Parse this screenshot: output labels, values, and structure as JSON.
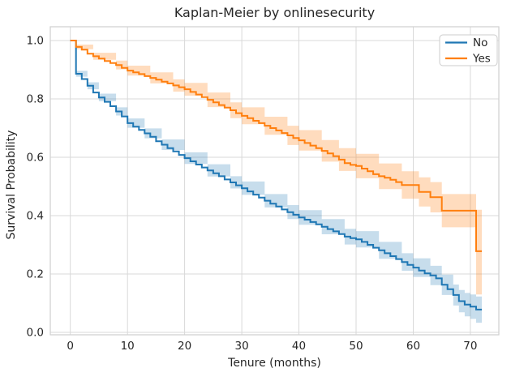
{
  "chart_data": {
    "type": "line",
    "variant": "kaplan-meier-step-with-confidence-bands",
    "title": "Kaplan-Meier by onlinesecurity",
    "xlabel": "Tenure (months)",
    "ylabel": "Survival Probability",
    "xticks": [
      0,
      10,
      20,
      30,
      40,
      50,
      60,
      70
    ],
    "yticks": [
      0,
      0.2,
      0.4,
      0.6,
      0.8,
      1
    ],
    "xlim": [
      -3.5,
      75
    ],
    "ylim": [
      0.0,
      1.0
    ],
    "grid": true,
    "colors": {
      "text": "#262626",
      "grid": "#d9d9d9",
      "spine": "#cfcfcf",
      "background": "#ffffff",
      "legend_border": "#cccccc"
    },
    "legend": {
      "position": "upper right",
      "entries": [
        {
          "label": "No",
          "color": "#1f77b4"
        },
        {
          "label": "Yes",
          "color": "#ff7f0e"
        }
      ]
    },
    "series": [
      {
        "name": "No",
        "color": "#1f77b4",
        "band_fill": "rgba(31,119,180,0.25)",
        "points": [
          [
            0,
            1
          ],
          [
            1,
            0.886
          ],
          [
            2,
            0.868
          ],
          [
            3,
            0.845
          ],
          [
            4,
            0.822
          ],
          [
            5,
            0.805
          ],
          [
            6,
            0.79
          ],
          [
            7,
            0.775
          ],
          [
            8,
            0.757
          ],
          [
            9,
            0.74
          ],
          [
            10,
            0.717
          ],
          [
            11,
            0.705
          ],
          [
            12,
            0.694
          ],
          [
            13,
            0.682
          ],
          [
            14,
            0.67
          ],
          [
            15,
            0.655
          ],
          [
            16,
            0.643
          ],
          [
            17,
            0.631
          ],
          [
            18,
            0.62
          ],
          [
            19,
            0.608
          ],
          [
            20,
            0.597
          ],
          [
            21,
            0.586
          ],
          [
            22,
            0.575
          ],
          [
            23,
            0.565
          ],
          [
            24,
            0.555
          ],
          [
            25,
            0.545
          ],
          [
            26,
            0.535
          ],
          [
            27,
            0.524
          ],
          [
            28,
            0.514
          ],
          [
            29,
            0.504
          ],
          [
            30,
            0.494
          ],
          [
            31,
            0.483
          ],
          [
            32,
            0.472
          ],
          [
            33,
            0.462
          ],
          [
            34,
            0.451
          ],
          [
            35,
            0.441
          ],
          [
            36,
            0.431
          ],
          [
            37,
            0.421
          ],
          [
            38,
            0.412
          ],
          [
            39,
            0.403
          ],
          [
            40,
            0.394
          ],
          [
            41,
            0.386
          ],
          [
            42,
            0.378
          ],
          [
            43,
            0.37
          ],
          [
            44,
            0.362
          ],
          [
            45,
            0.354
          ],
          [
            46,
            0.346
          ],
          [
            47,
            0.337
          ],
          [
            48,
            0.328
          ],
          [
            49,
            0.323
          ],
          [
            50,
            0.319
          ],
          [
            51,
            0.31
          ],
          [
            52,
            0.3
          ],
          [
            53,
            0.29
          ],
          [
            54,
            0.281
          ],
          [
            55,
            0.271
          ],
          [
            56,
            0.261
          ],
          [
            57,
            0.251
          ],
          [
            58,
            0.241
          ],
          [
            59,
            0.231
          ],
          [
            60,
            0.222
          ],
          [
            61,
            0.212
          ],
          [
            62,
            0.202
          ],
          [
            63,
            0.195
          ],
          [
            64,
            0.185
          ],
          [
            65,
            0.163
          ],
          [
            66,
            0.148
          ],
          [
            67,
            0.128
          ],
          [
            68,
            0.107
          ],
          [
            69,
            0.095
          ],
          [
            70,
            0.088
          ],
          [
            71,
            0.078
          ],
          [
            72,
            0.078
          ]
        ],
        "band": [
          [
            0,
            1,
            1
          ],
          [
            1,
            0.876,
            0.896
          ],
          [
            3,
            0.833,
            0.857
          ],
          [
            5,
            0.792,
            0.818
          ],
          [
            8,
            0.743,
            0.771
          ],
          [
            10,
            0.701,
            0.733
          ],
          [
            13,
            0.665,
            0.699
          ],
          [
            16,
            0.625,
            0.661
          ],
          [
            20,
            0.577,
            0.617
          ],
          [
            24,
            0.534,
            0.576
          ],
          [
            28,
            0.493,
            0.535
          ],
          [
            30,
            0.471,
            0.517
          ],
          [
            34,
            0.428,
            0.474
          ],
          [
            38,
            0.388,
            0.436
          ],
          [
            40,
            0.369,
            0.419
          ],
          [
            44,
            0.336,
            0.388
          ],
          [
            48,
            0.301,
            0.355
          ],
          [
            50,
            0.291,
            0.347
          ],
          [
            54,
            0.252,
            0.31
          ],
          [
            58,
            0.211,
            0.271
          ],
          [
            60,
            0.19,
            0.254
          ],
          [
            63,
            0.162,
            0.228
          ],
          [
            65,
            0.128,
            0.198
          ],
          [
            67,
            0.092,
            0.164
          ],
          [
            68,
            0.069,
            0.145
          ],
          [
            69,
            0.055,
            0.135
          ],
          [
            70,
            0.046,
            0.13
          ],
          [
            71,
            0.033,
            0.123
          ],
          [
            72,
            0.033,
            0.123
          ]
        ]
      },
      {
        "name": "Yes",
        "color": "#ff7f0e",
        "band_fill": "rgba(255,127,14,0.27)",
        "points": [
          [
            0,
            1
          ],
          [
            1,
            0.978
          ],
          [
            2,
            0.969
          ],
          [
            3,
            0.955
          ],
          [
            4,
            0.946
          ],
          [
            5,
            0.938
          ],
          [
            6,
            0.93
          ],
          [
            7,
            0.923
          ],
          [
            8,
            0.916
          ],
          [
            9,
            0.906
          ],
          [
            10,
            0.897
          ],
          [
            11,
            0.891
          ],
          [
            12,
            0.885
          ],
          [
            13,
            0.878
          ],
          [
            14,
            0.872
          ],
          [
            15,
            0.866
          ],
          [
            16,
            0.859
          ],
          [
            17,
            0.853
          ],
          [
            18,
            0.846
          ],
          [
            19,
            0.84
          ],
          [
            20,
            0.833
          ],
          [
            21,
            0.824
          ],
          [
            22,
            0.815
          ],
          [
            23,
            0.806
          ],
          [
            24,
            0.797
          ],
          [
            25,
            0.788
          ],
          [
            26,
            0.779
          ],
          [
            27,
            0.77
          ],
          [
            28,
            0.761
          ],
          [
            29,
            0.751
          ],
          [
            30,
            0.742
          ],
          [
            31,
            0.734
          ],
          [
            32,
            0.725
          ],
          [
            33,
            0.717
          ],
          [
            34,
            0.708
          ],
          [
            35,
            0.7
          ],
          [
            36,
            0.692
          ],
          [
            37,
            0.683
          ],
          [
            38,
            0.675
          ],
          [
            39,
            0.666
          ],
          [
            40,
            0.658
          ],
          [
            41,
            0.649
          ],
          [
            42,
            0.64
          ],
          [
            43,
            0.631
          ],
          [
            44,
            0.622
          ],
          [
            45,
            0.613
          ],
          [
            46,
            0.604
          ],
          [
            47,
            0.592
          ],
          [
            48,
            0.58
          ],
          [
            49,
            0.574
          ],
          [
            50,
            0.57
          ],
          [
            51,
            0.561
          ],
          [
            52,
            0.552
          ],
          [
            53,
            0.542
          ],
          [
            54,
            0.535
          ],
          [
            55,
            0.53
          ],
          [
            56,
            0.523
          ],
          [
            57,
            0.515
          ],
          [
            58,
            0.505
          ],
          [
            61,
            0.481
          ],
          [
            63,
            0.463
          ],
          [
            65,
            0.417
          ],
          [
            71,
            0.278
          ],
          [
            72,
            0.278
          ]
        ],
        "band": [
          [
            0,
            1,
            1
          ],
          [
            1,
            0.97,
            0.986
          ],
          [
            4,
            0.934,
            0.958
          ],
          [
            8,
            0.901,
            0.931
          ],
          [
            10,
            0.88,
            0.914
          ],
          [
            14,
            0.853,
            0.891
          ],
          [
            18,
            0.825,
            0.867
          ],
          [
            20,
            0.811,
            0.855
          ],
          [
            24,
            0.772,
            0.822
          ],
          [
            28,
            0.734,
            0.788
          ],
          [
            30,
            0.713,
            0.771
          ],
          [
            34,
            0.677,
            0.739
          ],
          [
            38,
            0.642,
            0.708
          ],
          [
            40,
            0.623,
            0.693
          ],
          [
            44,
            0.585,
            0.659
          ],
          [
            47,
            0.553,
            0.631
          ],
          [
            50,
            0.528,
            0.612
          ],
          [
            54,
            0.491,
            0.579
          ],
          [
            58,
            0.458,
            0.552
          ],
          [
            61,
            0.431,
            0.531
          ],
          [
            63,
            0.411,
            0.515
          ],
          [
            65,
            0.36,
            0.474
          ],
          [
            71,
            0.13,
            0.42
          ],
          [
            72,
            0.13,
            0.42
          ]
        ]
      }
    ]
  }
}
